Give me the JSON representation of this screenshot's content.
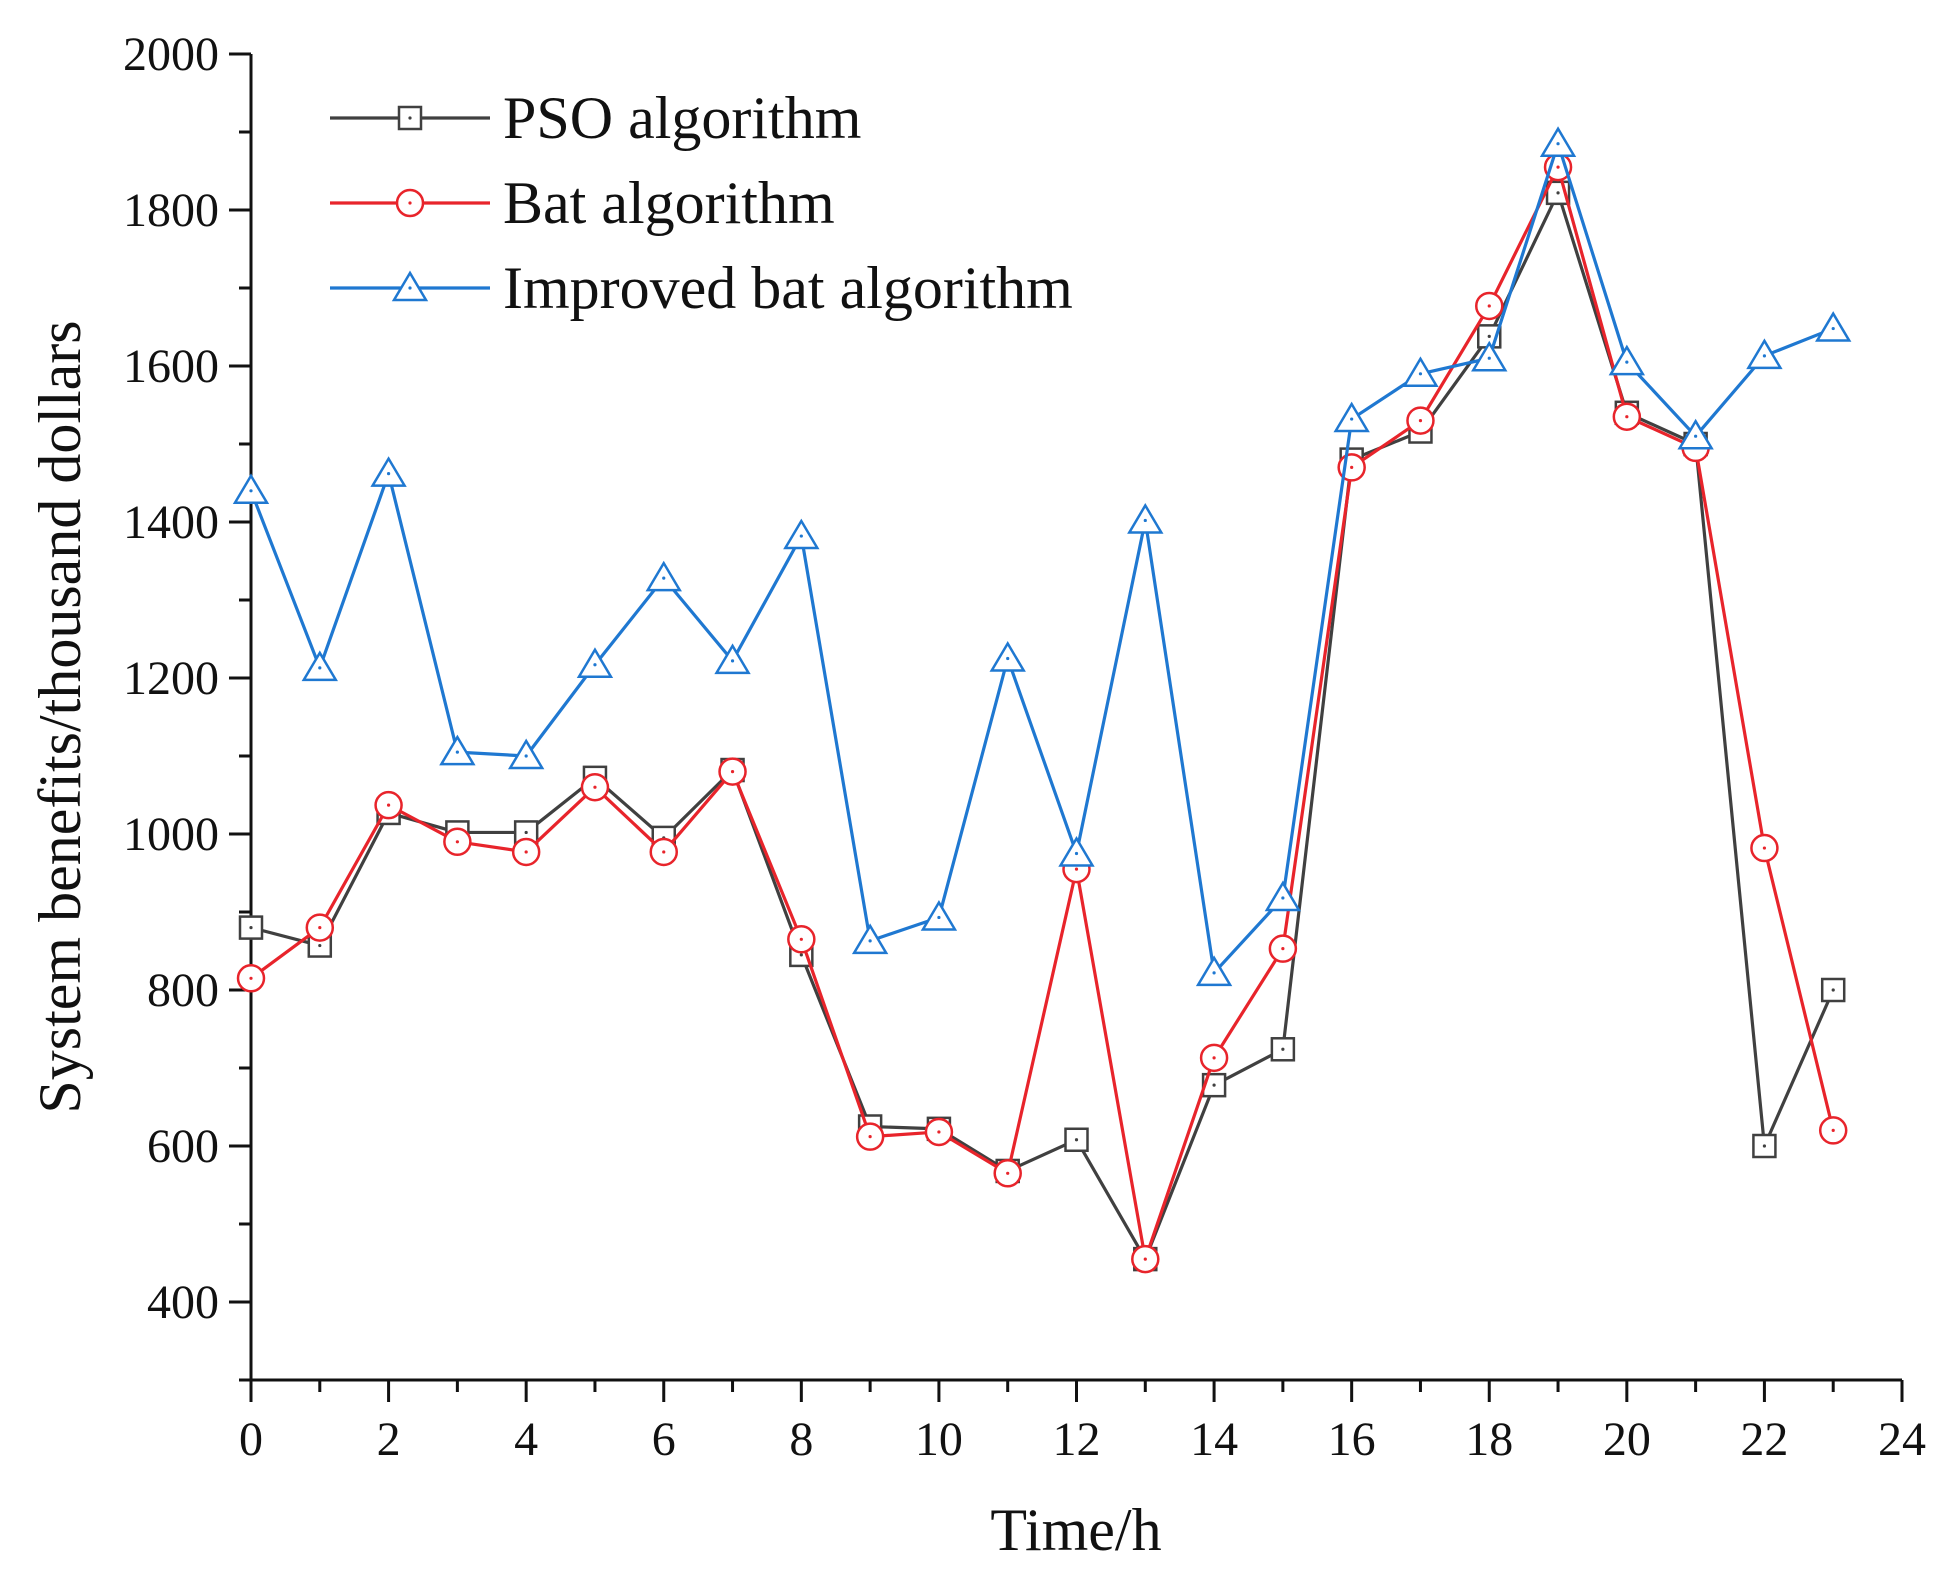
{
  "chart_data": {
    "type": "line",
    "title": "",
    "xlabel": "Time/h",
    "ylabel": "System benefits/thousand dollars",
    "xlim": [
      0,
      24
    ],
    "ylim": [
      300,
      2000
    ],
    "x_ticks": [
      "0",
      "2",
      "4",
      "6",
      "8",
      "10",
      "12",
      "14",
      "16",
      "18",
      "20",
      "22",
      "24"
    ],
    "y_ticks": [
      "400",
      "600",
      "800",
      "1000",
      "1200",
      "1400",
      "1600",
      "1800",
      "2000"
    ],
    "legend_position": "top-left",
    "x": [
      0,
      1,
      2,
      3,
      4,
      5,
      6,
      7,
      8,
      9,
      10,
      11,
      12,
      13,
      14,
      15,
      16,
      17,
      18,
      19,
      20,
      21,
      22,
      23
    ],
    "series": [
      {
        "name": "PSO algorithm",
        "color": "#404040",
        "marker": "square",
        "values": [
          880,
          857,
          1027,
          1002,
          1002,
          1072,
          995,
          1082,
          845,
          625,
          622,
          568,
          608,
          455,
          678,
          724,
          1480,
          1516,
          1638,
          1822,
          1540,
          1500,
          600,
          800
        ]
      },
      {
        "name": "Bat algorithm",
        "color": "#e8242b",
        "marker": "circle",
        "values": [
          815,
          880,
          1037,
          990,
          977,
          1060,
          977,
          1080,
          865,
          612,
          618,
          565,
          955,
          455,
          713,
          853,
          1470,
          1530,
          1677,
          1855,
          1535,
          1495,
          982,
          620
        ]
      },
      {
        "name": "Improved bat algorithm",
        "color": "#1f78d1",
        "marker": "triangle",
        "values": [
          1440,
          1213,
          1462,
          1105,
          1100,
          1217,
          1328,
          1222,
          1382,
          863,
          893,
          1225,
          975,
          1402,
          822,
          918,
          1532,
          1590,
          1610,
          1885,
          1605,
          1510,
          1613,
          1648
        ]
      }
    ]
  }
}
